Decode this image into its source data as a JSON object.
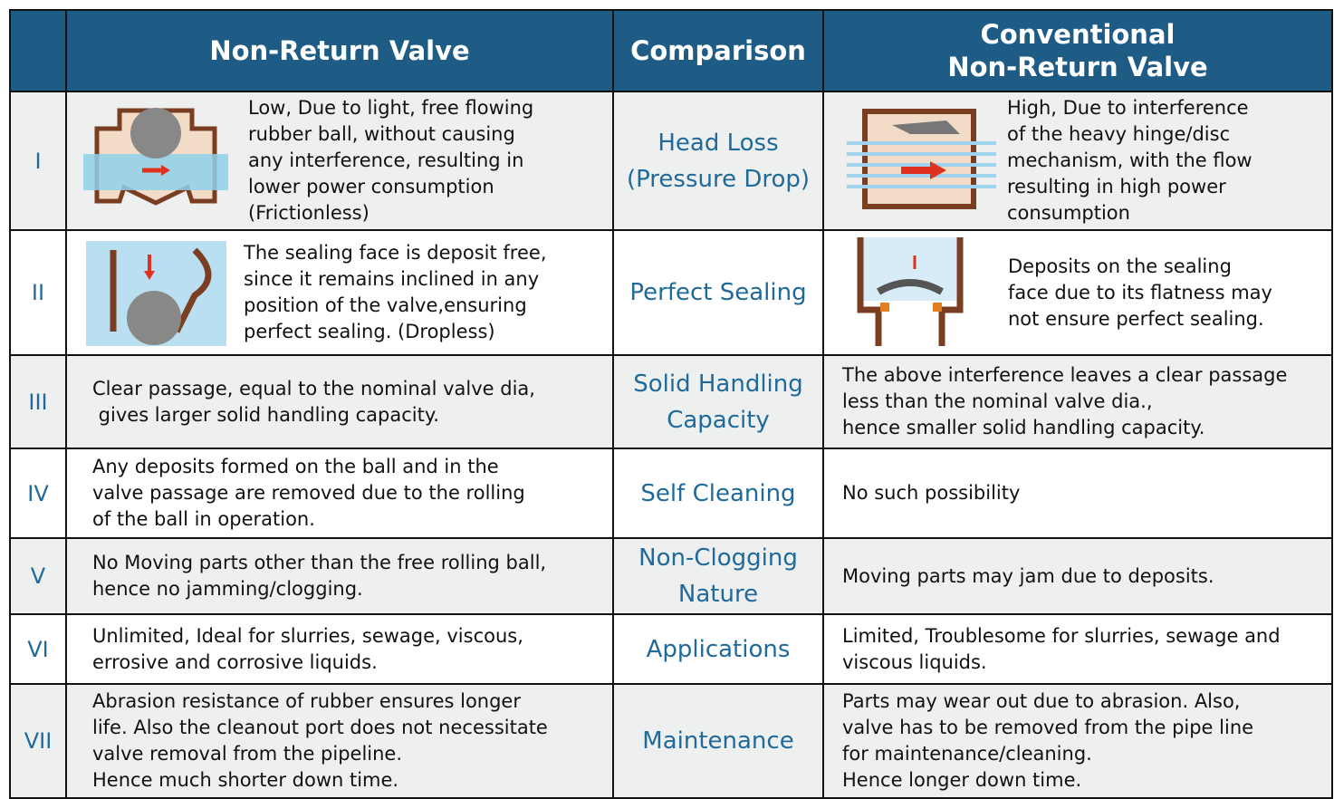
{
  "header": {
    "columns": [
      [
        "Non-Return Valve"
      ],
      [
        "Comparison"
      ],
      [
        "Conventional",
        "Non-Return Valve"
      ]
    ]
  },
  "rows": [
    {
      "numeral": "I",
      "left": [
        "Low, Due to light, free flowing",
        "rubber ball, without causing",
        "any interference, resulting in",
        "lower power consumption",
        "(Frictionless)"
      ],
      "comparison": [
        "Head Loss",
        "(Pressure Drop)"
      ],
      "right": [
        "High, Due to interference",
        "of the heavy hinge/disc",
        "mechanism, with the flow",
        "resulting in high power",
        "consumption"
      ]
    },
    {
      "numeral": "II",
      "left": [
        "The sealing face is deposit free,",
        "since it remains inclined in any",
        "position of the valve,ensuring",
        "perfect sealing. (Dropless)"
      ],
      "comparison": [
        "Perfect Sealing"
      ],
      "right": [
        "Deposits on the sealing",
        "face due to its flatness may",
        "not ensure perfect sealing."
      ]
    },
    {
      "numeral": "III",
      "left": [
        "Clear passage, equal to the nominal valve dia,",
        " gives larger solid handling capacity."
      ],
      "comparison": [
        "Solid Handling",
        "Capacity"
      ],
      "right": [
        "The above interference leaves a clear passage",
        "less than the nominal valve dia.,",
        "hence smaller solid handling capacity."
      ]
    },
    {
      "numeral": "IV",
      "left": [
        "Any deposits formed on the ball and in the",
        "valve passage are removed due to the rolling",
        "of the ball in operation."
      ],
      "comparison": [
        "Self Cleaning"
      ],
      "right": [
        "No such possibility"
      ]
    },
    {
      "numeral": "V",
      "left": [
        "No Moving parts other than the free rolling ball,",
        "hence no jamming/clogging."
      ],
      "comparison": [
        "Non-Clogging",
        "Nature"
      ],
      "right": [
        "Moving parts may jam due to deposits."
      ]
    },
    {
      "numeral": "VI",
      "left": [
        "Unlimited, Ideal for slurries, sewage, viscous,",
        "errosive and corrosive liquids."
      ],
      "comparison": [
        "Applications"
      ],
      "right": [
        "Limited, Troublesome for slurries, sewage and",
        "viscous liquids."
      ]
    },
    {
      "numeral": "VII",
      "left": [
        "Abrasion resistance of rubber ensures longer",
        "life. Also the cleanout port does not necessitate",
        "valve removal from the pipeline.",
        "Hence much shorter down time."
      ],
      "comparison": [
        "Maintenance"
      ],
      "right": [
        "Parts may wear out due to abrasion. Also,",
        "valve has to be removed from the pipe line",
        "for maintenance/cleaning.",
        "Hence longer down time."
      ]
    }
  ]
}
